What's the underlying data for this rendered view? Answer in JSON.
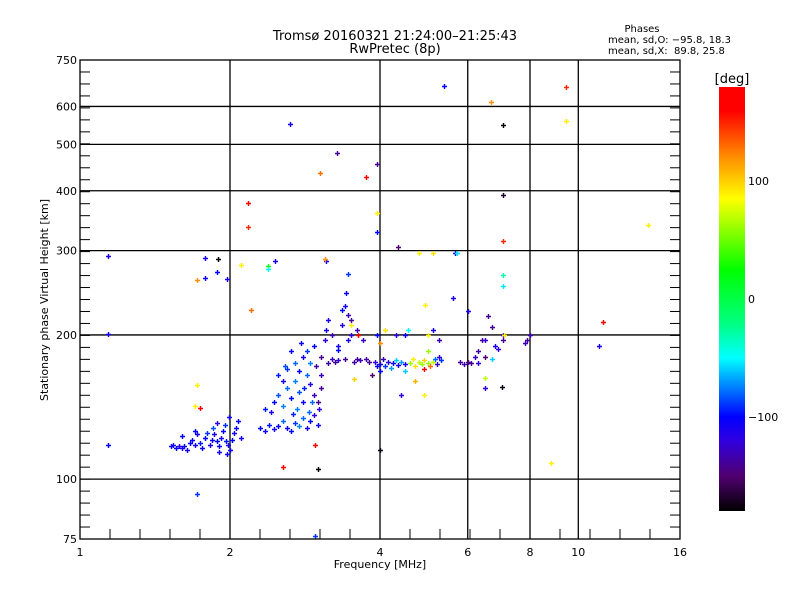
{
  "chart_data": {
    "type": "scatter",
    "title": "Tromsø 20160321 21:24:00–21:25:43",
    "subtitle": "RwPretec (8p)",
    "xlabel": "Frequency [MHz]",
    "ylabel": "Stationary phase Virtual Height [km]",
    "xscale": "log",
    "yscale": "log",
    "xlim": [
      1,
      16
    ],
    "ylim": [
      75,
      750
    ],
    "xticks": [
      1,
      2,
      4,
      6,
      8,
      10,
      16
    ],
    "xtick_labels": [
      "1",
      "2",
      "4",
      "6",
      "8",
      "10",
      "16"
    ],
    "xgrid": [
      2,
      4,
      6,
      8,
      10
    ],
    "yticks": [
      75,
      100,
      200,
      300,
      400,
      500,
      600,
      750
    ],
    "ytick_labels": [
      "75",
      "100",
      "200",
      "300",
      "400",
      "500",
      "600",
      "750"
    ],
    "ygrid": [
      100,
      200,
      300,
      400,
      500,
      600
    ],
    "grid": true,
    "stats": {
      "heading": "Phases",
      "o_line": "mean, sd,O: −95.8, 18.3",
      "x_line": "mean, sd,X:  89.8, 25.8"
    },
    "colorbar": {
      "label": "[deg]",
      "range": [
        -180,
        180
      ],
      "ticks": [
        100,
        0,
        -100
      ],
      "tick_labels": [
        "100",
        "0",
        "−100"
      ]
    },
    "point_fields": [
      "frequency_mhz",
      "height_km",
      "phase_deg"
    ],
    "points": [
      [
        1.52,
        117,
        -105
      ],
      [
        1.54,
        118,
        -110
      ],
      [
        1.56,
        116,
        -100
      ],
      [
        1.58,
        117,
        -115
      ],
      [
        1.6,
        116,
        -110
      ],
      [
        1.62,
        117,
        -105
      ],
      [
        1.64,
        115,
        -110
      ],
      [
        1.66,
        119,
        -100
      ],
      [
        1.68,
        121,
        -105
      ],
      [
        1.7,
        118,
        -110
      ],
      [
        1.72,
        124,
        -110
      ],
      [
        1.74,
        119,
        -95
      ],
      [
        1.76,
        116,
        -105
      ],
      [
        1.78,
        122,
        -100
      ],
      [
        1.8,
        125,
        -90
      ],
      [
        1.82,
        118,
        -110
      ],
      [
        1.84,
        121,
        -105
      ],
      [
        1.86,
        124,
        -110
      ],
      [
        1.88,
        120,
        -100
      ],
      [
        1.9,
        117,
        -105
      ],
      [
        1.92,
        122,
        -110
      ],
      [
        1.94,
        126,
        -100
      ],
      [
        1.96,
        120,
        -95
      ],
      [
        1.98,
        118,
        -110
      ],
      [
        2.0,
        115,
        -105
      ],
      [
        2.02,
        121,
        -100
      ],
      [
        2.04,
        125,
        -110
      ],
      [
        2.06,
        128,
        -105
      ],
      [
        2.1,
        122,
        -110
      ],
      [
        1.95,
        130,
        -90
      ],
      [
        1.85,
        128,
        -85
      ],
      [
        1.7,
        126,
        -100
      ],
      [
        2.08,
        132,
        -105
      ],
      [
        1.99,
        135,
        -110
      ],
      [
        1.9,
        114,
        -110
      ],
      [
        1.97,
        113,
        -105
      ],
      [
        1.6,
        123,
        -100
      ],
      [
        1.88,
        131,
        -120
      ],
      [
        2.3,
        128,
        -100
      ],
      [
        2.35,
        126,
        -105
      ],
      [
        2.4,
        130,
        -95
      ],
      [
        2.45,
        127,
        -110
      ],
      [
        2.5,
        129,
        -100
      ],
      [
        2.55,
        132,
        -80
      ],
      [
        2.6,
        128,
        -105
      ],
      [
        2.65,
        126,
        -100
      ],
      [
        2.7,
        131,
        -90
      ],
      [
        2.75,
        129,
        -75
      ],
      [
        2.8,
        134,
        -80
      ],
      [
        2.85,
        128,
        -110
      ],
      [
        2.9,
        132,
        -100
      ],
      [
        2.95,
        136,
        -120
      ],
      [
        3.0,
        130,
        -105
      ],
      [
        2.35,
        140,
        -95
      ],
      [
        2.45,
        145,
        -100
      ],
      [
        2.5,
        150,
        -85
      ],
      [
        2.55,
        142,
        -75
      ],
      [
        2.6,
        155,
        -80
      ],
      [
        2.65,
        148,
        -100
      ],
      [
        2.7,
        160,
        -75
      ],
      [
        2.75,
        152,
        -85
      ],
      [
        2.8,
        145,
        -105
      ],
      [
        2.85,
        165,
        -80
      ],
      [
        2.9,
        158,
        -115
      ],
      [
        2.95,
        150,
        -130
      ],
      [
        3.0,
        145,
        -140
      ],
      [
        2.6,
        170,
        -90
      ],
      [
        2.7,
        175,
        -80
      ],
      [
        2.75,
        168,
        -100
      ],
      [
        2.8,
        180,
        -110
      ],
      [
        2.85,
        185,
        -90
      ],
      [
        2.9,
        175,
        -75
      ],
      [
        2.95,
        190,
        -100
      ],
      [
        2.5,
        165,
        -95
      ],
      [
        2.55,
        160,
        -110
      ],
      [
        2.65,
        185,
        -100
      ],
      [
        2.72,
        140,
        -75
      ],
      [
        2.88,
        138,
        -80
      ],
      [
        3.05,
        155,
        -140
      ],
      [
        3.05,
        165,
        -130
      ],
      [
        2.98,
        172,
        -135
      ],
      [
        3.02,
        140,
        -120
      ],
      [
        2.42,
        138,
        -110
      ],
      [
        2.58,
        172,
        -85
      ],
      [
        2.78,
        192,
        -105
      ],
      [
        2.68,
        137,
        -95
      ],
      [
        2.92,
        145,
        -80
      ],
      [
        2.82,
        155,
        -95
      ],
      [
        3.05,
        180,
        -140
      ],
      [
        3.1,
        195,
        -120
      ],
      [
        3.12,
        205,
        -110
      ],
      [
        3.15,
        175,
        -135
      ],
      [
        3.2,
        178,
        -130
      ],
      [
        3.25,
        176,
        -140
      ],
      [
        3.3,
        177,
        -125
      ],
      [
        3.35,
        210,
        -115
      ],
      [
        3.4,
        178,
        -140
      ],
      [
        3.4,
        230,
        -110
      ],
      [
        3.42,
        245,
        -105
      ],
      [
        3.45,
        220,
        -130
      ],
      [
        3.5,
        200,
        -120
      ],
      [
        3.55,
        176,
        -135
      ],
      [
        3.6,
        178,
        -140
      ],
      [
        3.65,
        177,
        -130
      ],
      [
        3.5,
        215,
        -140
      ],
      [
        3.3,
        190,
        -110
      ],
      [
        3.2,
        200,
        -130
      ],
      [
        3.6,
        205,
        -130
      ],
      [
        3.7,
        195,
        -125
      ],
      [
        3.75,
        178,
        -135
      ],
      [
        3.8,
        176,
        -140
      ],
      [
        3.45,
        195,
        -110
      ],
      [
        3.35,
        225,
        -100
      ],
      [
        3.15,
        215,
        -110
      ],
      [
        3.62,
        200,
        160
      ],
      [
        3.5,
        210,
        90
      ],
      [
        3.3,
        186,
        -100
      ],
      [
        3.55,
        162,
        100
      ],
      [
        3.85,
        165,
        -150
      ],
      [
        3.9,
        176,
        -120
      ],
      [
        3.95,
        172,
        -100
      ],
      [
        4.0,
        174,
        -110
      ],
      [
        4.05,
        178,
        -130
      ],
      [
        4.1,
        172,
        -90
      ],
      [
        4.15,
        176,
        -115
      ],
      [
        4.2,
        171,
        -70
      ],
      [
        4.25,
        175,
        -100
      ],
      [
        4.3,
        177,
        -60
      ],
      [
        4.35,
        173,
        -110
      ],
      [
        4.4,
        176,
        -70
      ],
      [
        4.5,
        174,
        -110
      ],
      [
        4.6,
        175,
        60
      ],
      [
        4.65,
        178,
        90
      ],
      [
        4.7,
        172,
        95
      ],
      [
        4.8,
        176,
        70
      ],
      [
        4.85,
        174,
        60
      ],
      [
        4.9,
        177,
        100
      ],
      [
        5.0,
        175,
        60
      ],
      [
        5.05,
        172,
        130
      ],
      [
        5.1,
        176,
        70
      ],
      [
        5.15,
        178,
        -80
      ],
      [
        5.2,
        174,
        -130
      ],
      [
        5.25,
        180,
        -120
      ],
      [
        5.3,
        177,
        -90
      ],
      [
        5.0,
        185,
        60
      ],
      [
        4.9,
        170,
        160
      ],
      [
        4.5,
        168,
        -60
      ],
      [
        4.0,
        168,
        -100
      ],
      [
        4.7,
        160,
        110
      ],
      [
        4.9,
        150,
        90
      ],
      [
        4.4,
        150,
        -120
      ],
      [
        5.0,
        200,
        90
      ],
      [
        5.25,
        195,
        -130
      ],
      [
        5.1,
        205,
        -110
      ],
      [
        4.1,
        205,
        95
      ],
      [
        3.95,
        200,
        -100
      ],
      [
        4.55,
        205,
        -50
      ],
      [
        4.5,
        200,
        -100
      ],
      [
        4.3,
        200,
        -120
      ],
      [
        4.0,
        192,
        120
      ],
      [
        5.8,
        176,
        -140
      ],
      [
        5.9,
        174,
        -130
      ],
      [
        6.0,
        176,
        -145
      ],
      [
        6.1,
        175,
        -140
      ],
      [
        6.2,
        180,
        -130
      ],
      [
        6.3,
        185,
        -135
      ],
      [
        6.4,
        195,
        -140
      ],
      [
        6.5,
        180,
        -150
      ],
      [
        6.5,
        195,
        -120
      ],
      [
        6.7,
        178,
        -60
      ],
      [
        6.8,
        190,
        -110
      ],
      [
        6.9,
        187,
        -120
      ],
      [
        7.05,
        200,
        -120
      ],
      [
        7.05,
        195,
        -140
      ],
      [
        7.1,
        200,
        90
      ],
      [
        7.9,
        195,
        -140
      ],
      [
        8.0,
        200,
        -130
      ],
      [
        7.8,
        192,
        -130
      ],
      [
        6.3,
        175,
        -120
      ],
      [
        6.5,
        163,
        70
      ],
      [
        6.5,
        155,
        -120
      ],
      [
        1.138,
        292,
        -110
      ],
      [
        1.138,
        201,
        -105
      ],
      [
        1.138,
        118,
        -100
      ],
      [
        1.72,
        93,
        -90
      ],
      [
        2.64,
        552,
        -110
      ],
      [
        3.28,
        479,
        -140
      ],
      [
        3.03,
        436,
        130
      ],
      [
        3.75,
        427,
        165
      ],
      [
        3.94,
        455,
        -140
      ],
      [
        3.94,
        359,
        90
      ],
      [
        3.94,
        328,
        -100
      ],
      [
        4.35,
        305,
        -150
      ],
      [
        5.37,
        662,
        -100
      ],
      [
        6.68,
        614,
        120
      ],
      [
        7.05,
        548,
        -180
      ],
      [
        7.05,
        392,
        -170
      ],
      [
        7.05,
        314,
        150
      ],
      [
        7.05,
        267,
        -30
      ],
      [
        7.05,
        253,
        -55
      ],
      [
        9.45,
        660,
        150
      ],
      [
        9.45,
        560,
        90
      ],
      [
        13.8,
        339,
        90
      ],
      [
        11.2,
        213,
        165
      ],
      [
        11.0,
        190,
        -110
      ],
      [
        8.8,
        108,
        90
      ],
      [
        7.02,
        156,
        -175
      ],
      [
        4.0,
        115,
        -175
      ],
      [
        2.96,
        118,
        175
      ],
      [
        3.0,
        105,
        -180
      ],
      [
        2.55,
        106,
        165
      ],
      [
        2.96,
        76,
        -90
      ],
      [
        2.17,
        336,
        150
      ],
      [
        2.17,
        377,
        160
      ],
      [
        1.78,
        290,
        -110
      ],
      [
        1.89,
        288,
        -180
      ],
      [
        1.88,
        271,
        -100
      ],
      [
        1.78,
        263,
        -110
      ],
      [
        1.72,
        260,
        120
      ],
      [
        1.97,
        262,
        -110
      ],
      [
        2.1,
        280,
        90
      ],
      [
        2.38,
        278,
        30
      ],
      [
        2.46,
        286,
        -110
      ],
      [
        2.38,
        275,
        -50
      ],
      [
        2.2,
        226,
        130
      ],
      [
        1.72,
        157,
        90
      ],
      [
        1.7,
        142,
        90
      ],
      [
        1.74,
        141,
        160
      ],
      [
        3.11,
        286,
        -110
      ],
      [
        3.1,
        288,
        120
      ],
      [
        3.45,
        268,
        -90
      ],
      [
        5.65,
        297,
        -110
      ],
      [
        5.7,
        297,
        -55
      ],
      [
        4.8,
        296,
        90
      ],
      [
        5.1,
        296,
        95
      ],
      [
        5.6,
        239,
        -110
      ],
      [
        6.6,
        219,
        -140
      ],
      [
        6.7,
        208,
        -140
      ],
      [
        4.93,
        231,
        90
      ],
      [
        6.0,
        224,
        -110
      ]
    ]
  }
}
